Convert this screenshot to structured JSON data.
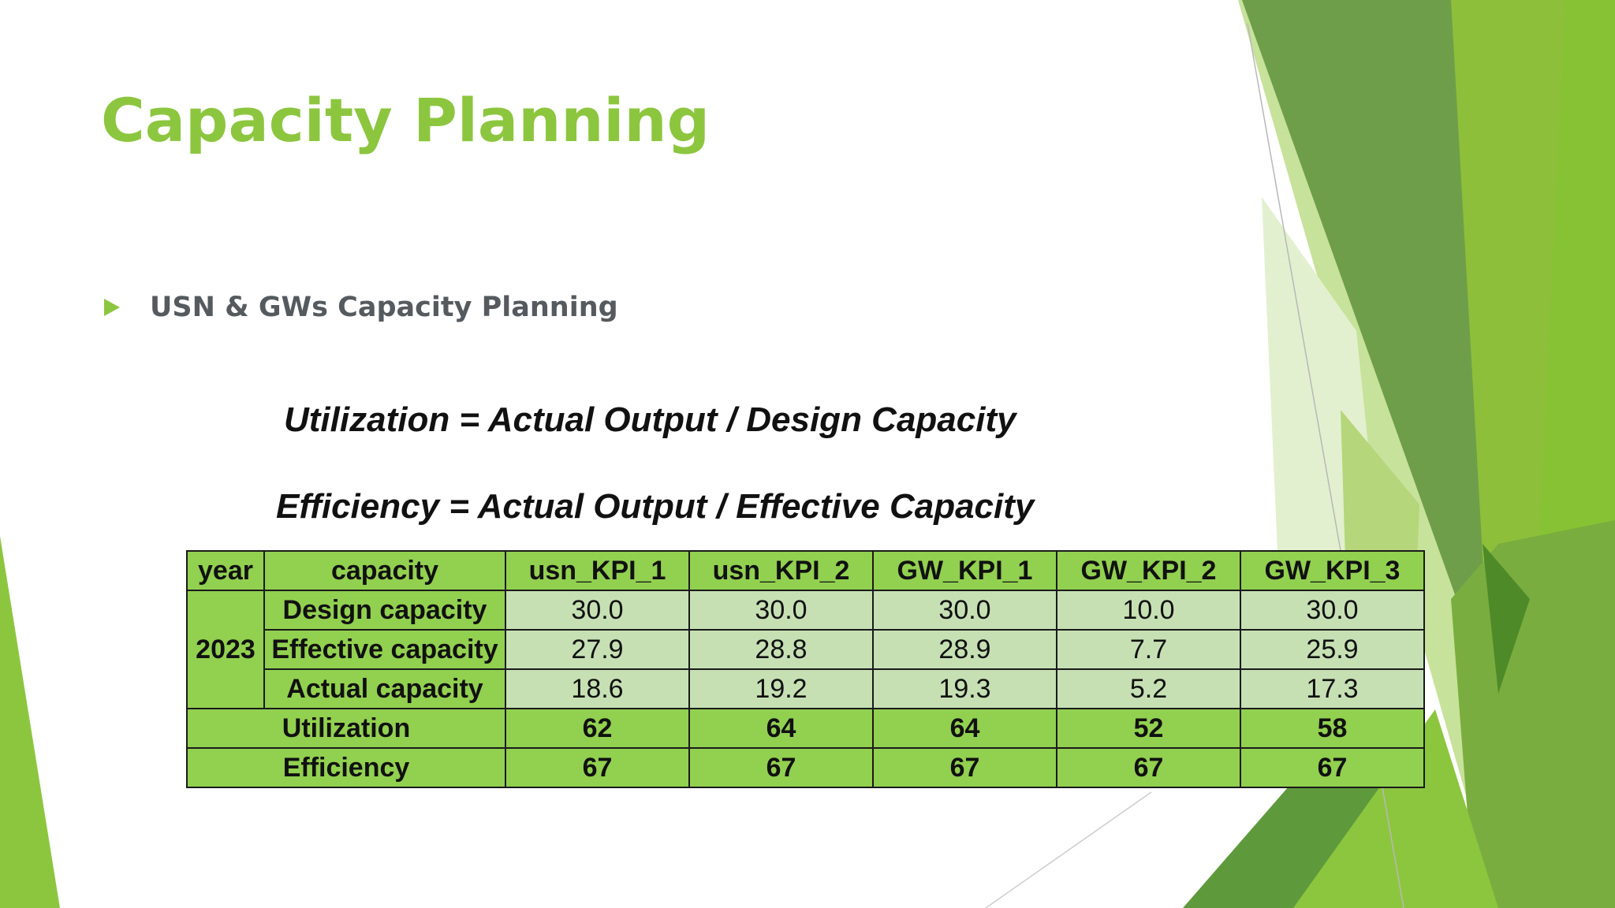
{
  "slide": {
    "title": "Capacity Planning",
    "bullet": "USN & GWs Capacity Planning",
    "formula_utilization": "Utilization = Actual Output / Design Capacity",
    "formula_efficiency": "Efficiency = Actual Output / Effective Capacity"
  },
  "table": {
    "headers": [
      "year",
      "capacity",
      "usn_KPI_1",
      "usn_KPI_2",
      "GW_KPI_1",
      "GW_KPI_2",
      "GW_KPI_3"
    ],
    "year": "2023",
    "rows": [
      {
        "label": "Design capacity",
        "values": [
          "30.0",
          "30.0",
          "30.0",
          "10.0",
          "30.0"
        ]
      },
      {
        "label": "Effective capacity",
        "values": [
          "27.9",
          "28.8",
          "28.9",
          "7.7",
          "25.9"
        ]
      },
      {
        "label": "Actual capacity",
        "values": [
          "18.6",
          "19.2",
          "19.3",
          "5.2",
          "17.3"
        ]
      }
    ],
    "summary": [
      {
        "label": "Utilization",
        "values": [
          "62",
          "64",
          "64",
          "52",
          "58"
        ]
      },
      {
        "label": "Efficiency",
        "values": [
          "67",
          "67",
          "67",
          "67",
          "67"
        ]
      }
    ]
  },
  "colors": {
    "accent_green": "#8cc63f",
    "header_green": "#92d050",
    "cell_light_green": "#c6e0b4",
    "dark_green": "#5b8f2f"
  }
}
